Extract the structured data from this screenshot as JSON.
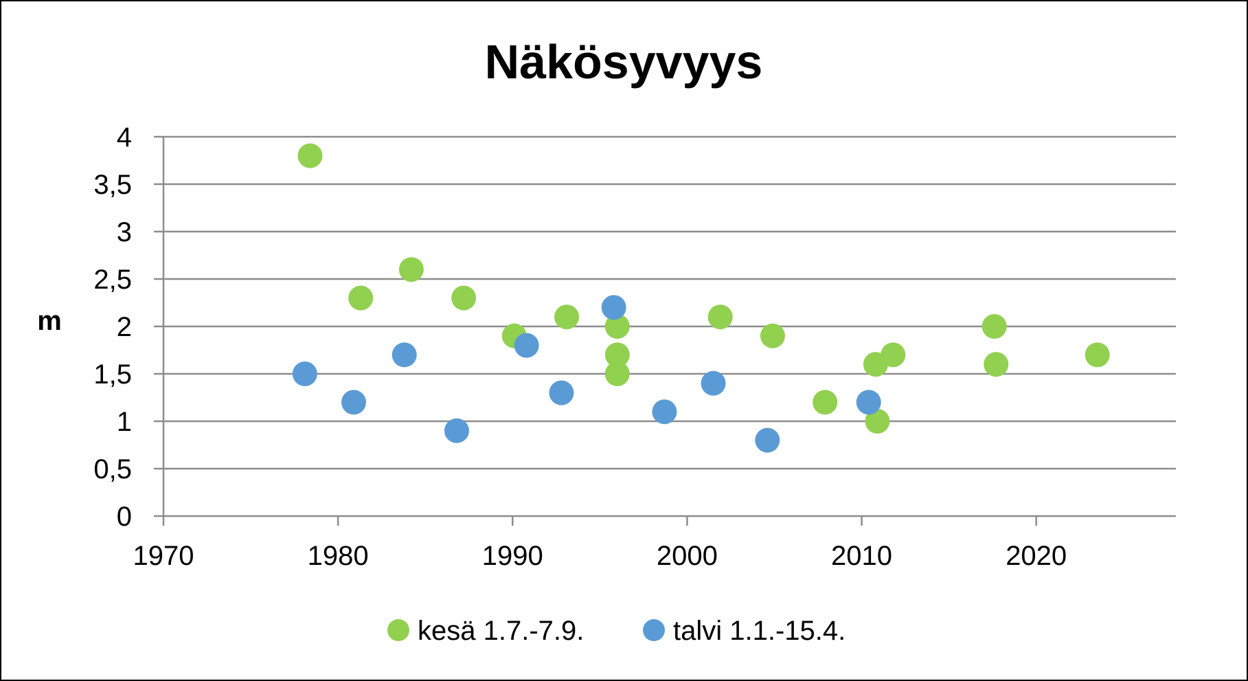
{
  "chart_data": {
    "type": "scatter",
    "title": "Näkösyvyys",
    "xlabel": "",
    "ylabel": "m",
    "xlim": [
      1970,
      2028
    ],
    "ylim": [
      0,
      4
    ],
    "x_ticks": [
      1970,
      1980,
      1990,
      2000,
      2010,
      2020
    ],
    "y_ticks": [
      "0",
      "0,5",
      "1",
      "1,5",
      "2",
      "2,5",
      "3",
      "3,5",
      "4"
    ],
    "grid": true,
    "legend_position": "bottom",
    "series": [
      {
        "name": "kesä 1.7.-7.9.",
        "color": "#92d050",
        "points": [
          {
            "x": 1978.4,
            "y": 3.8
          },
          {
            "x": 1981.3,
            "y": 2.3
          },
          {
            "x": 1984.2,
            "y": 2.6
          },
          {
            "x": 1987.2,
            "y": 2.3
          },
          {
            "x": 1990.1,
            "y": 1.9
          },
          {
            "x": 1993.1,
            "y": 2.1
          },
          {
            "x": 1996.0,
            "y": 2.0
          },
          {
            "x": 1996.0,
            "y": 1.7
          },
          {
            "x": 1996.0,
            "y": 1.5
          },
          {
            "x": 2001.9,
            "y": 2.1
          },
          {
            "x": 2004.9,
            "y": 1.9
          },
          {
            "x": 2007.9,
            "y": 1.2
          },
          {
            "x": 2010.8,
            "y": 1.6
          },
          {
            "x": 2010.9,
            "y": 1.0
          },
          {
            "x": 2011.8,
            "y": 1.7
          },
          {
            "x": 2017.6,
            "y": 2.0
          },
          {
            "x": 2017.7,
            "y": 1.6
          },
          {
            "x": 2023.5,
            "y": 1.7
          }
        ]
      },
      {
        "name": "talvi 1.1.-15.4.",
        "color": "#5b9bd5",
        "points": [
          {
            "x": 1978.1,
            "y": 1.5
          },
          {
            "x": 1980.9,
            "y": 1.2
          },
          {
            "x": 1983.8,
            "y": 1.7
          },
          {
            "x": 1986.8,
            "y": 0.9
          },
          {
            "x": 1990.8,
            "y": 1.8
          },
          {
            "x": 1992.8,
            "y": 1.3
          },
          {
            "x": 1995.8,
            "y": 2.2
          },
          {
            "x": 1998.7,
            "y": 1.1
          },
          {
            "x": 2001.5,
            "y": 1.4
          },
          {
            "x": 2004.6,
            "y": 0.8
          },
          {
            "x": 2010.4,
            "y": 1.2
          }
        ]
      }
    ]
  }
}
